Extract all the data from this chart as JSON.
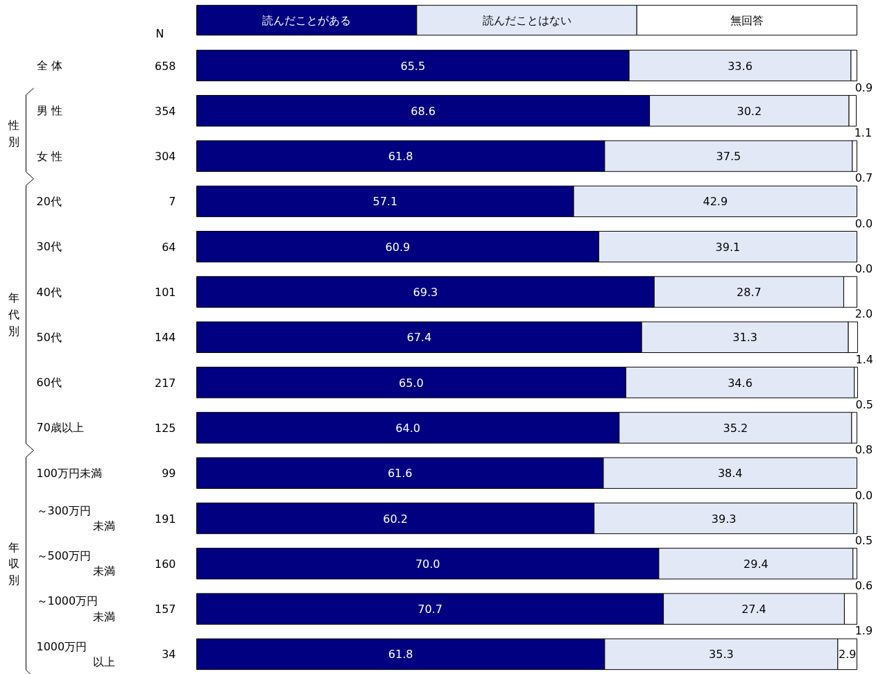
{
  "chart_data": {
    "type": "bar",
    "orientation": "horizontal",
    "stacked": true,
    "legend": "top",
    "tick_labels": false,
    "grid": false,
    "xlim": [
      0,
      100
    ],
    "categories": [
      "全 体",
      "男 性",
      "女 性",
      "20代",
      "30代",
      "40代",
      "50代",
      "60代",
      "70歳以上",
      "100万円未満",
      "～300万円未満",
      "～500万円未満",
      "～1000万円未満",
      "1000万円以上"
    ],
    "series": [
      {
        "name": "読んだことがある",
        "color": "#000080",
        "values": [
          65.5,
          68.6,
          61.8,
          57.1,
          60.9,
          69.3,
          67.4,
          65.0,
          64.0,
          61.6,
          60.2,
          70.0,
          70.7,
          61.8
        ],
        "value_labels": [
          "65.5",
          "68.6",
          "61.8",
          "57.1",
          "60.9",
          "69.3",
          "67.4",
          "65.0",
          "64.0",
          "61.6",
          "60.2",
          "70.0",
          "70.7",
          "61.8"
        ]
      },
      {
        "name": "読んだことはない",
        "color": "#e3e8f7",
        "values": [
          33.6,
          30.2,
          37.5,
          42.9,
          39.1,
          28.7,
          31.3,
          34.6,
          35.2,
          38.4,
          39.3,
          29.4,
          27.4,
          35.3
        ],
        "value_labels": [
          "33.6",
          "30.2",
          "37.5",
          "42.9",
          "39.1",
          "28.7",
          "31.3",
          "34.6",
          "35.2",
          "38.4",
          "39.3",
          "29.4",
          "27.4",
          "35.3"
        ]
      },
      {
        "name": "無回答",
        "color": "#ffffff",
        "values": [
          0.9,
          1.1,
          0.7,
          0.0,
          0.0,
          2.0,
          1.4,
          0.5,
          0.8,
          0.0,
          0.5,
          0.6,
          1.9,
          2.9
        ],
        "value_labels": [
          "0.9",
          "1.1",
          "0.7",
          "0.0",
          "0.0",
          "2.0",
          "1.4",
          "0.5",
          "0.8",
          "0.0",
          "0.5",
          "0.6",
          "1.9",
          "2.9"
        ]
      }
    ],
    "annotations": [
      "N",
      "658",
      "354",
      "304",
      "7",
      "64",
      "101",
      "144",
      "217",
      "125",
      "99",
      "191",
      "160",
      "157",
      "34",
      "性別",
      "年代別",
      "年収別"
    ]
  }
}
